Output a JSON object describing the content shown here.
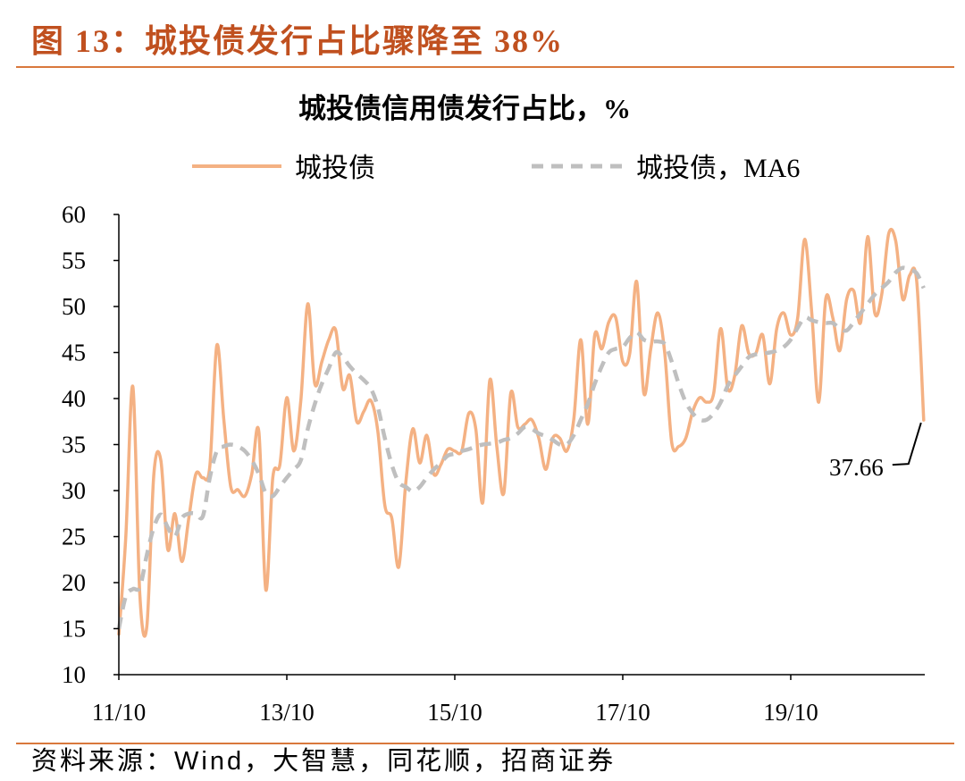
{
  "figure": {
    "caption": "图 13：城投债发行占比骤降至 38%",
    "source": "资料来源：Wind，大智慧，同花顺，招商证券"
  },
  "colors": {
    "caption": "#C0501F",
    "rule": "#D9783C",
    "axis": "#000000"
  },
  "chart_data": {
    "type": "line",
    "title": "城投债信用债发行占比，%",
    "legend": "top",
    "grid": false,
    "ylim": [
      10,
      60
    ],
    "y_ticks": [
      60,
      55,
      50,
      45,
      40,
      35,
      30,
      25,
      20,
      15,
      10
    ],
    "x_ticks": [
      "2011-10",
      "2013-10",
      "2015-10",
      "2017-10",
      "2019-10"
    ],
    "x_tick_labels": [
      "11/10",
      "13/10",
      "15/10",
      "17/10",
      "19/10"
    ],
    "x": [
      "2011-10",
      "2011-11",
      "2011-12",
      "2012-01",
      "2012-02",
      "2012-03",
      "2012-04",
      "2012-05",
      "2012-06",
      "2012-07",
      "2012-08",
      "2012-09",
      "2012-10",
      "2012-11",
      "2012-12",
      "2013-01",
      "2013-02",
      "2013-03",
      "2013-04",
      "2013-05",
      "2013-06",
      "2013-07",
      "2013-08",
      "2013-09",
      "2013-10",
      "2013-11",
      "2013-12",
      "2014-01",
      "2014-02",
      "2014-03",
      "2014-04",
      "2014-05",
      "2014-06",
      "2014-07",
      "2014-08",
      "2014-09",
      "2014-10",
      "2014-11",
      "2014-12",
      "2015-01",
      "2015-02",
      "2015-03",
      "2015-04",
      "2015-05",
      "2015-06",
      "2015-07",
      "2015-08",
      "2015-09",
      "2015-10",
      "2015-11",
      "2015-12",
      "2016-01",
      "2016-02",
      "2016-03",
      "2016-04",
      "2016-05",
      "2016-06",
      "2016-07",
      "2016-08",
      "2016-09",
      "2016-10",
      "2016-11",
      "2016-12",
      "2017-01",
      "2017-02",
      "2017-03",
      "2017-04",
      "2017-05",
      "2017-06",
      "2017-07",
      "2017-08",
      "2017-09",
      "2017-10",
      "2017-11",
      "2017-12",
      "2018-01",
      "2018-02",
      "2018-03",
      "2018-04",
      "2018-05",
      "2018-06",
      "2018-07",
      "2018-08",
      "2018-09",
      "2018-10",
      "2018-11",
      "2018-12",
      "2019-01",
      "2019-02",
      "2019-03",
      "2019-04",
      "2019-05",
      "2019-06",
      "2019-07",
      "2019-08",
      "2019-09",
      "2019-10",
      "2019-11",
      "2019-12",
      "2020-01",
      "2020-02",
      "2020-03",
      "2020-04",
      "2020-05",
      "2020-06",
      "2020-07",
      "2020-08",
      "2020-09",
      "2020-10",
      "2020-11",
      "2020-12",
      "2021-01",
      "2021-02",
      "2021-03",
      "2021-04",
      "2021-05"
    ],
    "series": [
      {
        "name": "城投债",
        "color": "#F4B183",
        "dashed": false,
        "values": [
          14.4,
          25,
          41.3,
          18.7,
          15.2,
          31.8,
          33.3,
          23.6,
          27.5,
          22.3,
          27,
          31.8,
          31.4,
          32.6,
          45.8,
          37.7,
          30.4,
          30.1,
          29.4,
          31.8,
          36.4,
          19.2,
          31.4,
          32.8,
          40.1,
          34.3,
          39.8,
          50.3,
          41.6,
          44,
          46.4,
          47.4,
          41.1,
          42.5,
          37.5,
          38.6,
          39.8,
          36.5,
          28.4,
          27,
          21.7,
          30.9,
          36.7,
          33,
          36,
          31.8,
          32.8,
          34.5,
          34.3,
          34.3,
          38.4,
          36.7,
          28.7,
          42,
          34.8,
          29.7,
          40.6,
          36.9,
          37.2,
          37.7,
          35.7,
          32.3,
          35.7,
          35.7,
          34.3,
          37.7,
          46.4,
          37.2,
          46.9,
          45.4,
          48.3,
          48.8,
          44,
          44.9,
          52.7,
          40.6,
          45.4,
          49.3,
          44.9,
          35.2,
          34.8,
          35.7,
          38.6,
          40.1,
          39.6,
          40.6,
          47.6,
          41.1,
          42.5,
          47.9,
          44.9,
          44.9,
          46.9,
          41.6,
          47.6,
          49.3,
          46.9,
          48.8,
          57.3,
          49.3,
          39.6,
          50.8,
          48.8,
          45.2,
          50.8,
          51.7,
          48.3,
          57.6,
          49.3,
          51.3,
          57.9,
          57.1,
          50.8,
          53.4,
          52.7,
          37.66
        ]
      },
      {
        "name": "城投债，MA6",
        "color": "#BFBFBF",
        "dashed": true,
        "values": [
          15,
          18.5,
          19.3,
          19.5,
          23,
          26,
          27.4,
          26,
          25,
          27,
          27.5,
          27.5,
          27.2,
          31.4,
          34.3,
          34.8,
          35,
          34.8,
          34.3,
          33.3,
          31.8,
          29.7,
          29.4,
          30.4,
          31.4,
          32.3,
          33.3,
          36.7,
          39.4,
          41.6,
          43.3,
          45,
          44.5,
          43.5,
          42.7,
          42,
          41.1,
          39.1,
          35.7,
          32.8,
          30.9,
          30.4,
          29.9,
          30.4,
          31.4,
          32.3,
          33,
          33.8,
          34,
          34.3,
          34.5,
          34.8,
          35,
          35.1,
          35.2,
          35.5,
          35.7,
          36.2,
          36.9,
          36.7,
          36.2,
          35.9,
          35.5,
          35,
          35,
          36,
          37.7,
          39.4,
          41.6,
          43.5,
          45,
          45.4,
          45.6,
          46.6,
          47.2,
          46.4,
          46.2,
          46.2,
          45.9,
          44,
          41.6,
          39.6,
          38.4,
          37.7,
          37.7,
          38.4,
          39.6,
          41.4,
          42.5,
          43.5,
          44.5,
          44.8,
          44.9,
          45,
          45.2,
          45.6,
          46.4,
          47.7,
          48.8,
          48.5,
          48.3,
          48.2,
          48.2,
          47.6,
          47.4,
          48.3,
          49.3,
          50.3,
          51.3,
          52,
          52.7,
          53.7,
          54.2,
          54,
          53.6,
          52
        ]
      }
    ],
    "annotations": [
      {
        "x": "2021-05",
        "value": 37.66,
        "label": "37.66"
      }
    ]
  }
}
